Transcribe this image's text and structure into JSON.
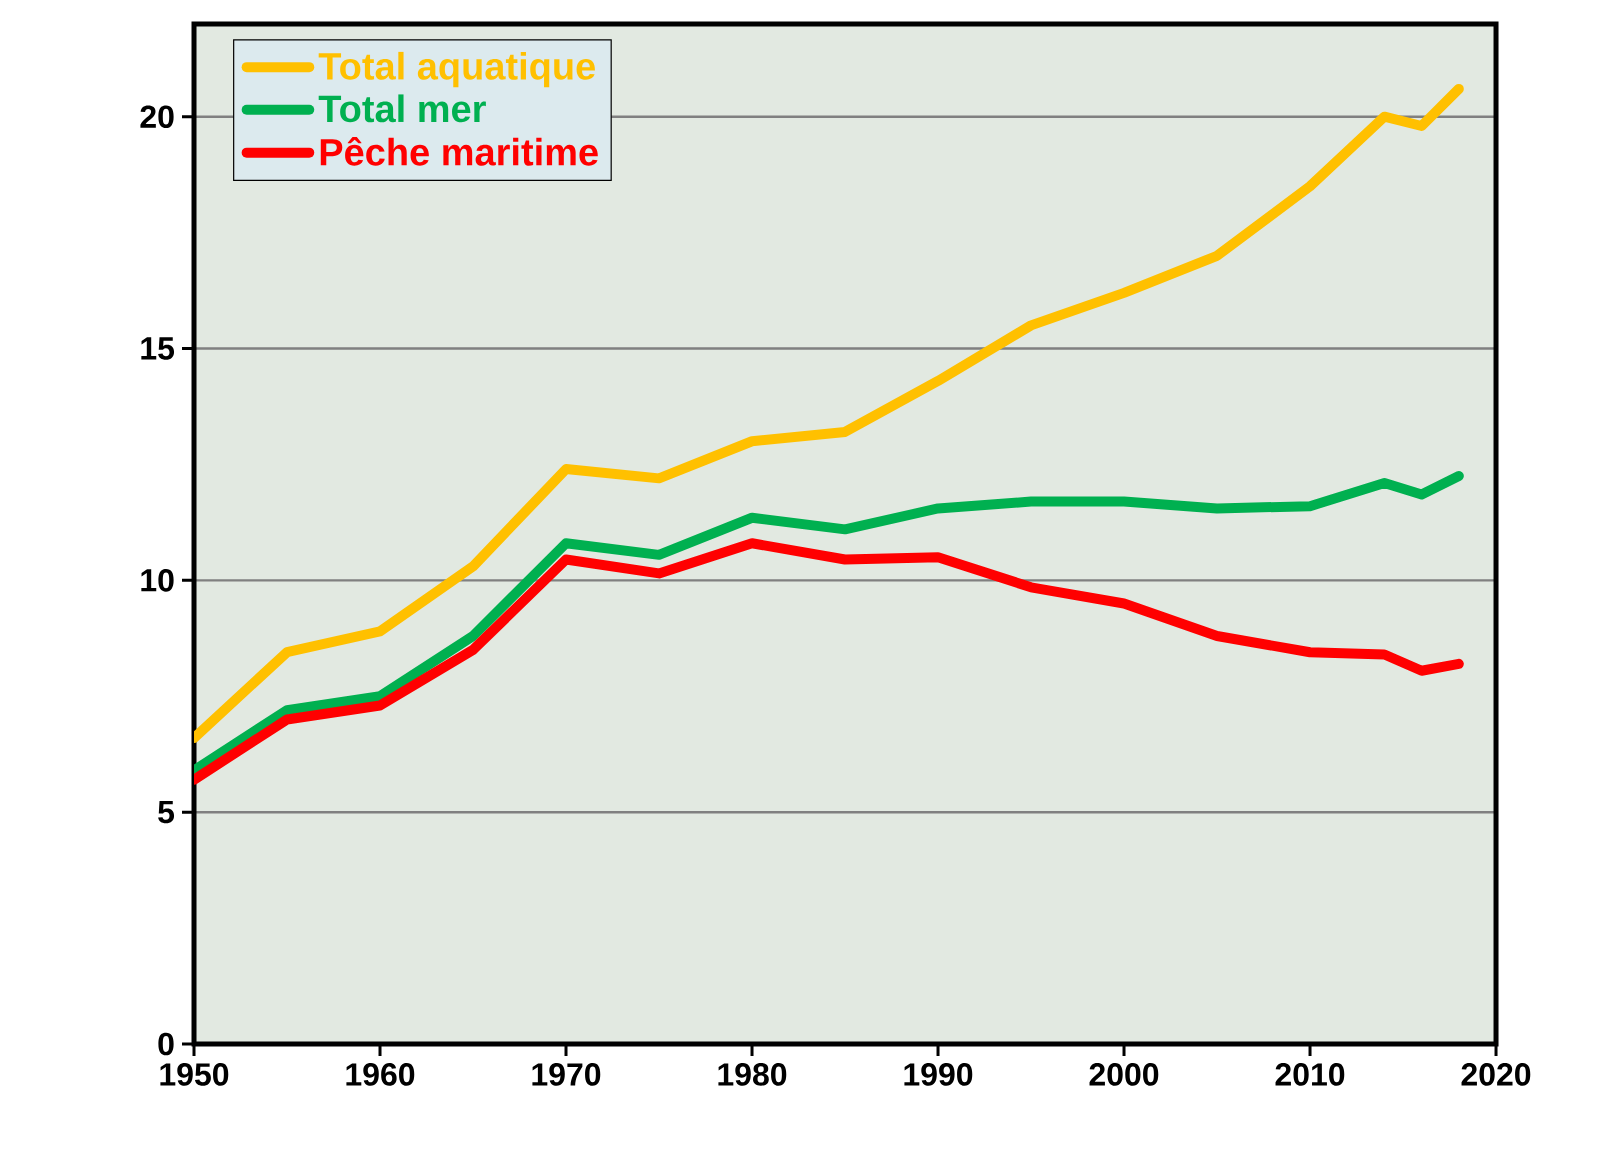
{
  "chart_data": {
    "type": "line",
    "x": [
      1950,
      1955,
      1960,
      1965,
      1970,
      1975,
      1980,
      1985,
      1990,
      1995,
      2000,
      2005,
      2010,
      2014,
      2016,
      2018
    ],
    "series": [
      {
        "name": "Total aquatique",
        "color": "#ffc000",
        "values": [
          6.6,
          8.45,
          8.9,
          10.3,
          12.4,
          12.2,
          13.0,
          13.2,
          14.3,
          15.5,
          16.2,
          17.0,
          18.5,
          20.0,
          19.8,
          20.6
        ]
      },
      {
        "name": "Total mer",
        "color": "#00b050",
        "values": [
          5.9,
          7.2,
          7.5,
          8.8,
          10.8,
          10.55,
          11.35,
          11.1,
          11.55,
          11.7,
          11.7,
          11.55,
          11.6,
          12.1,
          11.85,
          12.25
        ]
      },
      {
        "name": "Pêche maritime",
        "color": "#ff0000",
        "values": [
          5.7,
          7.0,
          7.3,
          8.5,
          10.45,
          10.15,
          10.8,
          10.45,
          10.5,
          9.85,
          9.5,
          8.8,
          8.45,
          8.4,
          8.05,
          8.2
        ]
      }
    ],
    "xlim": [
      1950,
      2020
    ],
    "xticks": [
      1950,
      1960,
      1970,
      1980,
      1990,
      2000,
      2010,
      2020
    ],
    "ylim": [
      0,
      22
    ],
    "yticks": [
      0,
      5,
      10,
      15,
      20
    ],
    "grid": "y",
    "legend": "top left",
    "marker": "none",
    "line_style": "solid"
  }
}
